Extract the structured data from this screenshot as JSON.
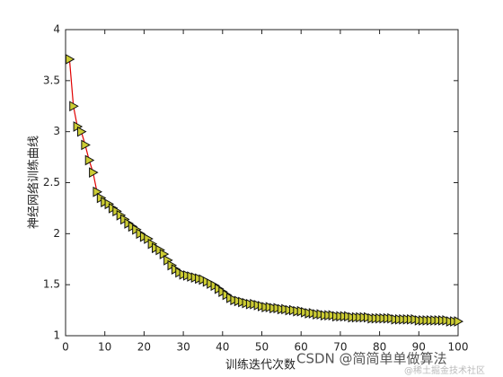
{
  "chart_data": {
    "type": "line",
    "xlabel": "训练迭代次数",
    "ylabel": "神经网络训练曲线",
    "x": [
      1,
      2,
      3,
      4,
      5,
      6,
      7,
      8,
      9,
      10,
      11,
      12,
      13,
      14,
      15,
      16,
      17,
      18,
      19,
      20,
      21,
      22,
      23,
      24,
      25,
      26,
      27,
      28,
      29,
      30,
      31,
      32,
      33,
      34,
      35,
      36,
      37,
      38,
      39,
      40,
      41,
      42,
      43,
      44,
      45,
      46,
      47,
      48,
      49,
      50,
      51,
      52,
      53,
      54,
      55,
      56,
      57,
      58,
      59,
      60,
      61,
      62,
      63,
      64,
      65,
      66,
      67,
      68,
      69,
      70,
      71,
      72,
      73,
      74,
      75,
      76,
      77,
      78,
      79,
      80,
      81,
      82,
      83,
      84,
      85,
      86,
      87,
      88,
      89,
      90,
      91,
      92,
      93,
      94,
      95,
      96,
      97,
      98,
      99,
      100
    ],
    "series": [
      {
        "color": "#e00000",
        "marker_color": "#cccc33",
        "values": [
          3.71,
          3.25,
          3.05,
          3.0,
          2.87,
          2.72,
          2.6,
          2.41,
          2.35,
          2.31,
          2.29,
          2.25,
          2.22,
          2.18,
          2.14,
          2.1,
          2.07,
          2.04,
          2.0,
          1.97,
          1.95,
          1.9,
          1.86,
          1.84,
          1.8,
          1.74,
          1.69,
          1.65,
          1.62,
          1.6,
          1.59,
          1.58,
          1.57,
          1.56,
          1.55,
          1.53,
          1.51,
          1.49,
          1.46,
          1.43,
          1.4,
          1.37,
          1.35,
          1.34,
          1.33,
          1.32,
          1.31,
          1.31,
          1.3,
          1.29,
          1.28,
          1.28,
          1.27,
          1.27,
          1.26,
          1.26,
          1.25,
          1.25,
          1.24,
          1.24,
          1.23,
          1.22,
          1.22,
          1.21,
          1.21,
          1.2,
          1.2,
          1.2,
          1.19,
          1.19,
          1.19,
          1.19,
          1.18,
          1.18,
          1.18,
          1.18,
          1.18,
          1.17,
          1.17,
          1.17,
          1.17,
          1.17,
          1.17,
          1.16,
          1.16,
          1.16,
          1.16,
          1.16,
          1.16,
          1.15,
          1.15,
          1.15,
          1.15,
          1.15,
          1.15,
          1.15,
          1.15,
          1.14,
          1.14,
          1.14
        ]
      }
    ],
    "xlim": [
      0,
      100
    ],
    "xticks": [
      0,
      10,
      20,
      30,
      40,
      50,
      60,
      70,
      80,
      90,
      100
    ],
    "ylim": [
      1,
      4
    ],
    "yticks": [
      1,
      1.5,
      2,
      2.5,
      3,
      3.5,
      4
    ],
    "watermark": [
      "CSDN @简简单单做算法",
      "@稀土掘金技术社区"
    ]
  }
}
